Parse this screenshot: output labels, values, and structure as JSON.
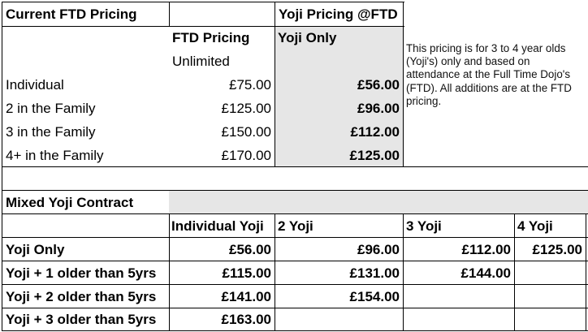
{
  "ftd": {
    "header": "Current FTD Pricing",
    "col_header": "FTD Pricing",
    "col_sub": "Unlimited",
    "rows": [
      {
        "label": "Individual",
        "price": "£75.00"
      },
      {
        "label": "2 in the Family",
        "price": "£125.00"
      },
      {
        "label": "3 in the Family",
        "price": "£150.00"
      },
      {
        "label": "4+ in the Family",
        "price": "£170.00"
      }
    ]
  },
  "yoji": {
    "header": "Yoji Pricing @FTD",
    "col_header": "Yoji Only",
    "prices": [
      "£56.00",
      "£96.00",
      "£112.00",
      "£125.00"
    ]
  },
  "note": "This pricing is for 3 to 4 year olds (Yoji's) only and based on attendance at the Full Time Dojo's (FTD). All additions are at the FTD pricing.",
  "mixed": {
    "title": "Mixed Yoji Contract",
    "columns": [
      "Individual Yoji",
      "2 Yoji",
      "3 Yoji",
      "4 Yoji"
    ],
    "rows": [
      {
        "label": "Yoji Only",
        "values": [
          "£56.00",
          "£96.00",
          "£112.00",
          "£125.00"
        ]
      },
      {
        "label": "Yoji + 1 older than 5yrs",
        "values": [
          "£115.00",
          "£131.00",
          "£144.00",
          ""
        ]
      },
      {
        "label": "Yoji + 2 older than 5yrs",
        "values": [
          "£141.00",
          "£154.00",
          "",
          ""
        ]
      },
      {
        "label": "Yoji + 3 older than 5yrs",
        "values": [
          "£163.00",
          "",
          "",
          ""
        ]
      }
    ]
  },
  "colors": {
    "grid": "#000000",
    "shade": "#e6e6e6"
  }
}
